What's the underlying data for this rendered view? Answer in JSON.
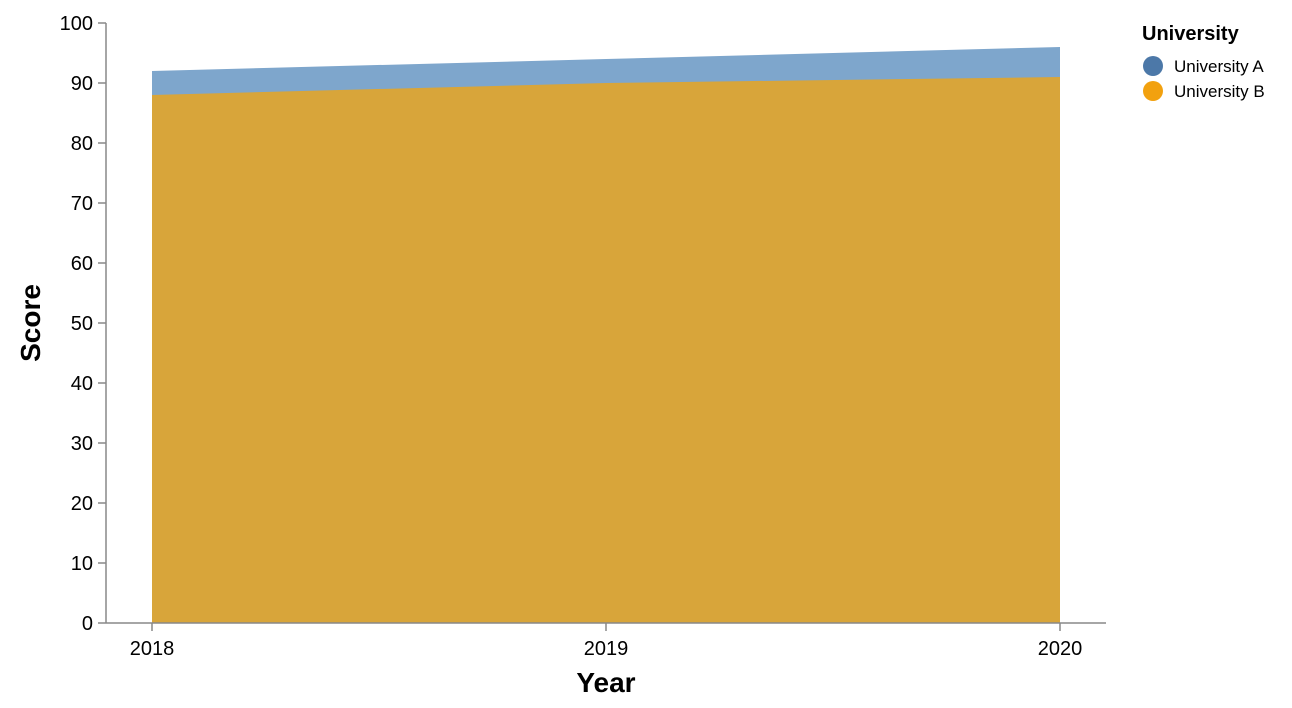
{
  "chart_data": {
    "type": "area",
    "xlabel": "Year",
    "ylabel": "Score",
    "x": [
      "2018",
      "2019",
      "2020"
    ],
    "ylim": [
      0,
      100
    ],
    "yticks": [
      0,
      10,
      20,
      30,
      40,
      50,
      60,
      70,
      80,
      90,
      100
    ],
    "grid": false,
    "overlap": "overlaid",
    "series": [
      {
        "name": "University A",
        "values": [
          92,
          94,
          96
        ],
        "color": "#4c78a8",
        "area_color": "#7ea6cc"
      },
      {
        "name": "University B",
        "values": [
          88,
          90,
          91
        ],
        "color": "#f2a10f",
        "area_color": "#d8a53a"
      }
    ],
    "legend": {
      "title": "University",
      "placement": "top-right"
    }
  }
}
